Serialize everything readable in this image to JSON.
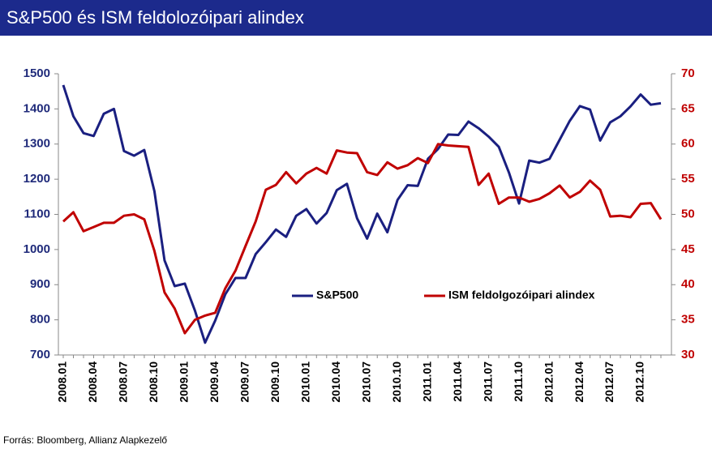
{
  "chart_data": {
    "type": "line",
    "title": "S&P500 és ISM feldolozóipari alindex",
    "source": "Forrás: Bloomberg, Allianz Alapkezelő",
    "categories": [
      "2008.01",
      null,
      null,
      "2008.04",
      null,
      null,
      "2008.07",
      null,
      null,
      "2008.10",
      null,
      null,
      "2009.01",
      null,
      null,
      "2009.04",
      null,
      null,
      "2009.07",
      null,
      null,
      "2009.10",
      null,
      null,
      "2010.01",
      null,
      null,
      "2010.04",
      null,
      null,
      "2010.07",
      null,
      null,
      "2010.10",
      null,
      null,
      "2011.01",
      null,
      null,
      "2011.04",
      null,
      null,
      "2011.07",
      null,
      null,
      "2011.10",
      null,
      null,
      "2012.01",
      null,
      null,
      "2012.04",
      null,
      null,
      "2012.07",
      null,
      null,
      "2012.10",
      null,
      null
    ],
    "series": [
      {
        "name": "S&P500",
        "color": "#1a1f80",
        "values": [
          1468,
          1379,
          1331,
          1323,
          1386,
          1400,
          1280,
          1267,
          1283,
          1166,
          969,
          896,
          903,
          826,
          735,
          798,
          873,
          919,
          919,
          987,
          1021,
          1057,
          1036,
          1096,
          1115,
          1074,
          1104,
          1169,
          1187,
          1089,
          1031,
          1102,
          1049,
          1141,
          1183,
          1181,
          1258,
          1286,
          1327,
          1326,
          1364,
          1345,
          1321,
          1292,
          1219,
          1131,
          1253,
          1247,
          1258,
          1312,
          1366,
          1408,
          1398,
          1310,
          1362,
          1379,
          1407,
          1441,
          1412,
          1416
        ]
      },
      {
        "name": "ISM feldolgozóipari alindex",
        "color": "#c00000",
        "axis": "y2",
        "values": [
          49.0,
          50.3,
          47.6,
          48.2,
          48.8,
          48.8,
          49.8,
          50.0,
          49.3,
          44.8,
          38.9,
          36.6,
          33.1,
          35.0,
          35.6,
          36.0,
          39.5,
          42.0,
          45.5,
          49.0,
          53.5,
          54.2,
          56.0,
          54.4,
          55.8,
          56.6,
          55.8,
          59.1,
          58.8,
          58.7,
          56.0,
          55.6,
          57.4,
          56.5,
          57.0,
          58.0,
          57.3,
          60.0,
          59.8,
          59.7,
          59.6,
          54.2,
          55.8,
          51.5,
          52.4,
          52.4,
          51.8,
          52.2,
          53.0,
          54.1,
          52.4,
          53.2,
          54.8,
          53.5,
          49.7,
          49.8,
          49.6,
          51.5,
          51.6,
          49.3
        ]
      }
    ],
    "ylim": [
      700,
      1500
    ],
    "yticks": [
      700,
      800,
      900,
      1000,
      1100,
      1200,
      1300,
      1400,
      1500
    ],
    "y2lim": [
      30,
      70
    ],
    "y2ticks": [
      30,
      35,
      40,
      45,
      50,
      55,
      60,
      65,
      70
    ],
    "grid": false
  }
}
